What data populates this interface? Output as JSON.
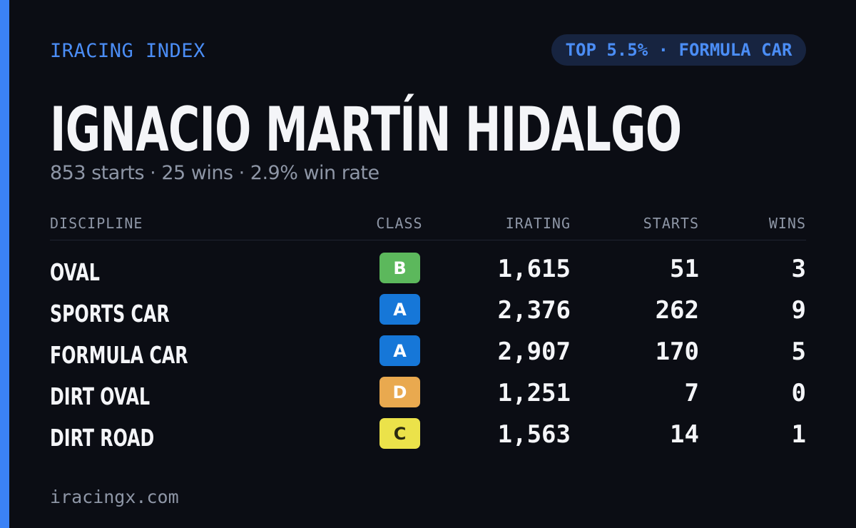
{
  "header": {
    "eyebrow": "IRACING INDEX",
    "badge": "TOP 5.5% · FORMULA CAR",
    "title": "IGNACIO MARTÍN HIDALGO",
    "subtitle": "853 starts · 25 wins · 2.9% win rate"
  },
  "table": {
    "columns": [
      "DISCIPLINE",
      "CLASS",
      "IRATING",
      "STARTS",
      "WINS"
    ],
    "rows": [
      {
        "discipline": "OVAL",
        "class": "B",
        "class_color": "#5cb85c",
        "class_text_color": "#ffffff",
        "irating": "1,615",
        "starts": "51",
        "wins": "3"
      },
      {
        "discipline": "SPORTS CAR",
        "class": "A",
        "class_color": "#1677d8",
        "class_text_color": "#ffffff",
        "irating": "2,376",
        "starts": "262",
        "wins": "9"
      },
      {
        "discipline": "FORMULA CAR",
        "class": "A",
        "class_color": "#1677d8",
        "class_text_color": "#ffffff",
        "irating": "2,907",
        "starts": "170",
        "wins": "5"
      },
      {
        "discipline": "DIRT OVAL",
        "class": "D",
        "class_color": "#e9a94f",
        "class_text_color": "#ffffff",
        "irating": "1,251",
        "starts": "7",
        "wins": "0"
      },
      {
        "discipline": "DIRT ROAD",
        "class": "C",
        "class_color": "#ebe24a",
        "class_text_color": "#2a2a10",
        "irating": "1,563",
        "starts": "14",
        "wins": "1"
      }
    ]
  },
  "footer": {
    "site": "iracingx.com"
  }
}
